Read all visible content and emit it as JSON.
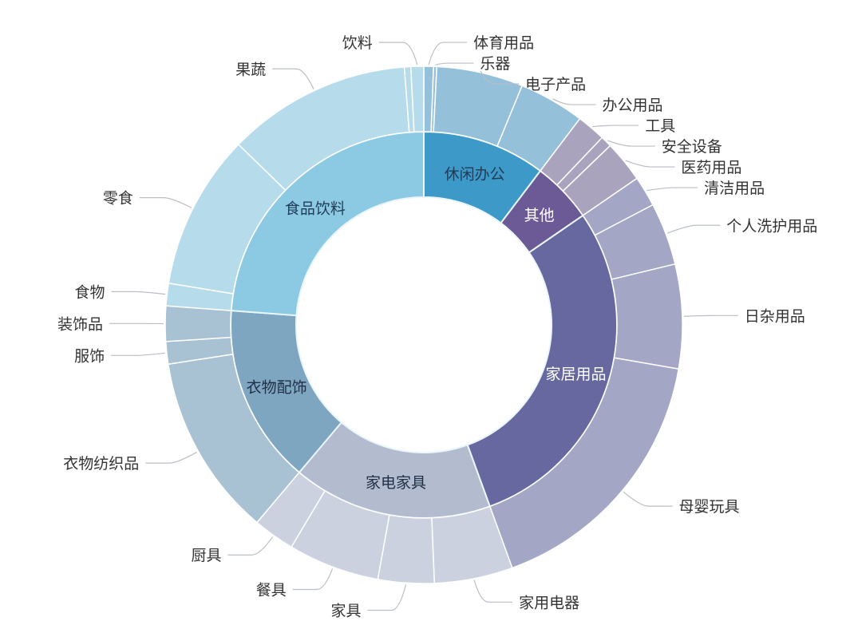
{
  "chart_data": {
    "type": "sunburst",
    "unit": "percent share (estimated from angles)",
    "title": "",
    "start": "top, clockwise",
    "categories": [
      {
        "name": "休闲办公",
        "color": "#3d9ac8",
        "label_color": "#1f3b57",
        "outer_color": "#95c0da",
        "children": [
          {
            "name": "体育用品",
            "value": 0.6
          },
          {
            "name": "乐器",
            "value": 0.2
          },
          {
            "name": "电子产品",
            "value": 5.4
          },
          {
            "name": "办公用品",
            "value": 4.1
          }
        ]
      },
      {
        "name": "其他",
        "color": "#6c5a96",
        "label_color": "#ffffff",
        "outer_color": "#a9a3bd",
        "children": [
          {
            "name": "工具",
            "value": 1.8
          },
          {
            "name": "安全设备",
            "value": 0.7
          },
          {
            "name": "医药用品",
            "value": 2.6
          }
        ]
      },
      {
        "name": "家居用品",
        "color": "#66689f",
        "label_color": "#ffffff",
        "outer_color": "#a3a6c4",
        "children": [
          {
            "name": "清洁用品",
            "value": 1.9
          },
          {
            "name": "个人洗护用品",
            "value": 3.9
          },
          {
            "name": "日杂用品",
            "value": 6.5
          },
          {
            "name": "母婴玩具",
            "value": 16.7
          }
        ]
      },
      {
        "name": "家电家具",
        "color": "#b3bbcf",
        "label_color": "#1f2f45",
        "outer_color": "#ccd1e0",
        "children": [
          {
            "name": "家用电器",
            "value": 4.9
          },
          {
            "name": "家具",
            "value": 3.5
          },
          {
            "name": "餐具",
            "value": 5.7
          },
          {
            "name": "厨具",
            "value": 2.6
          }
        ]
      },
      {
        "name": "衣物配饰",
        "color": "#7fa6c1",
        "label_color": "#1f2f45",
        "outer_color": "#a9c2d3",
        "children": [
          {
            "name": "衣物纺织品",
            "value": 11.4
          },
          {
            "name": "服饰",
            "value": 1.4
          },
          {
            "name": "装饰品",
            "value": 2.2
          }
        ]
      },
      {
        "name": "食品饮料",
        "color": "#8ccae4",
        "label_color": "#1f3b57",
        "outer_color": "#b6dcec",
        "children": [
          {
            "name": "食物",
            "value": 1.4
          },
          {
            "name": "零食",
            "value": 9.7
          },
          {
            "name": "果蔬",
            "value": 11.5
          },
          {
            "name": "",
            "value": 0.4
          },
          {
            "name": "饮料",
            "value": 0.8
          }
        ]
      }
    ]
  }
}
